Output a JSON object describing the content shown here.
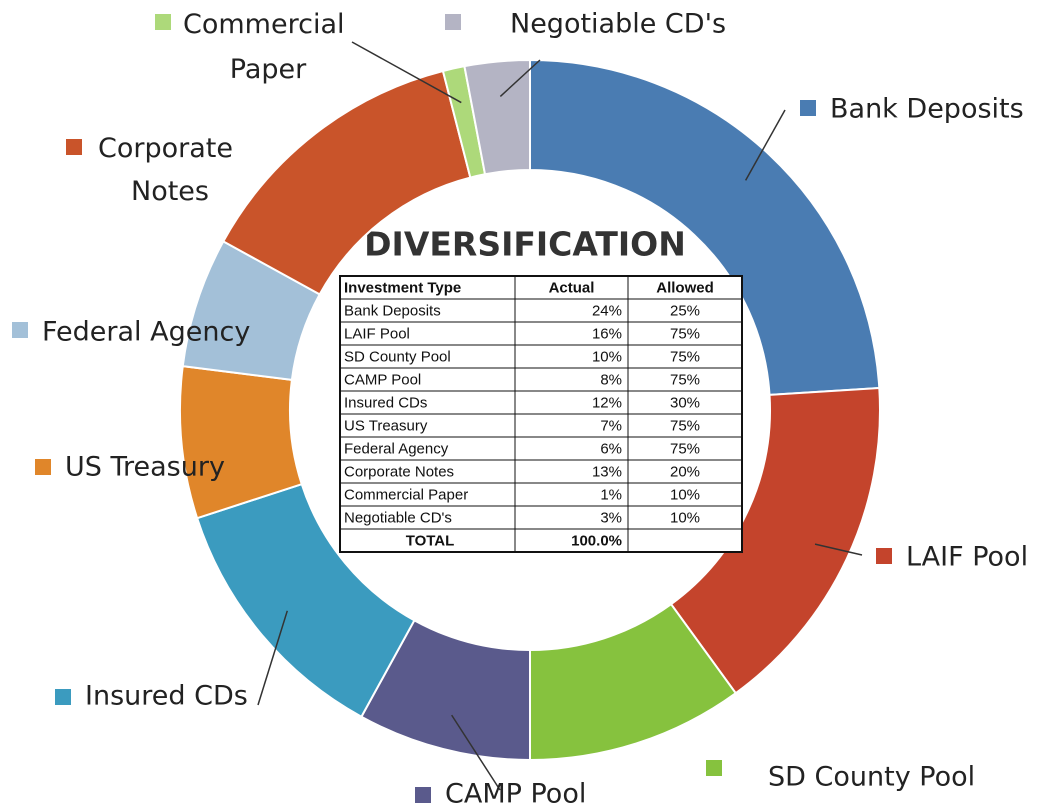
{
  "chart_data": {
    "type": "pie",
    "title": "DIVERSIFICATION",
    "categories": [
      "Bank Deposits",
      "LAIF Pool",
      "SD County Pool",
      "CAMP Pool",
      "Insured CDs",
      "US Treasury",
      "Federal Agency",
      "Corporate Notes",
      "Commercial Paper",
      "Negotiable CD's"
    ],
    "values": [
      24,
      16,
      10,
      8,
      12,
      7,
      6,
      13,
      1,
      3
    ],
    "value_labels": [
      "24%",
      "16%",
      "10%",
      "8%",
      "12%",
      "7%",
      "6%",
      "13%",
      "1%",
      "3%"
    ],
    "colors": [
      "#4a7cb2",
      "#c4442c",
      "#86c23e",
      "#5a5a8c",
      "#3b9bbf",
      "#e0862a",
      "#a3c0d8",
      "#c9542a",
      "#add97a",
      "#b4b4c4"
    ]
  },
  "table": {
    "headers": [
      "Investment Type",
      "Actual",
      "Allowed"
    ],
    "allowed": [
      "25%",
      "75%",
      "75%",
      "75%",
      "30%",
      "75%",
      "75%",
      "20%",
      "10%",
      "10%"
    ],
    "total": [
      "TOTAL",
      "100.0%"
    ]
  }
}
